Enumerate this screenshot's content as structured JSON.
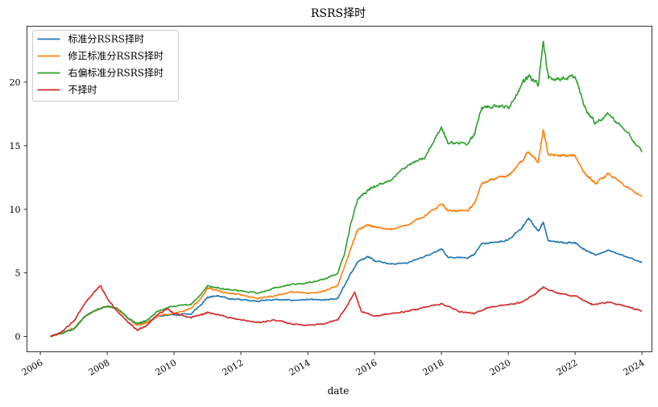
{
  "chart_data": {
    "type": "line",
    "title": "RSRS择时",
    "xlabel": "date",
    "ylabel": "",
    "xlim": [
      2005.6,
      2024.3
    ],
    "ylim": [
      -1.2,
      24.4
    ],
    "x_ticks": [
      2006,
      2008,
      2010,
      2012,
      2014,
      2016,
      2018,
      2020,
      2022,
      2024
    ],
    "x_tick_labels": [
      "2006",
      "2008",
      "2010",
      "2012",
      "2014",
      "2016",
      "2018",
      "2020",
      "2022",
      "2024"
    ],
    "y_ticks": [
      0,
      5,
      10,
      15,
      20
    ],
    "y_tick_labels": [
      "0",
      "5",
      "10",
      "15",
      "20"
    ],
    "grid": false,
    "legend_position": "top-left",
    "series": [
      {
        "name": "标准分RSRS择时",
        "color": "#1f77b4",
        "points": [
          [
            2006.3,
            0
          ],
          [
            2006.6,
            0.25
          ],
          [
            2007.0,
            0.6
          ],
          [
            2007.3,
            1.5
          ],
          [
            2007.6,
            2.0
          ],
          [
            2008.0,
            2.4
          ],
          [
            2008.3,
            2.2
          ],
          [
            2008.6,
            1.5
          ],
          [
            2008.9,
            0.9
          ],
          [
            2009.2,
            1.1
          ],
          [
            2009.5,
            1.6
          ],
          [
            2010.0,
            1.7
          ],
          [
            2010.5,
            1.75
          ],
          [
            2010.8,
            2.5
          ],
          [
            2011.0,
            3.1
          ],
          [
            2011.3,
            3.2
          ],
          [
            2011.6,
            3.0
          ],
          [
            2012.0,
            2.9
          ],
          [
            2012.5,
            2.8
          ],
          [
            2013.0,
            2.9
          ],
          [
            2013.5,
            2.85
          ],
          [
            2014.0,
            2.9
          ],
          [
            2014.5,
            2.85
          ],
          [
            2014.9,
            3.0
          ],
          [
            2015.1,
            4.0
          ],
          [
            2015.3,
            5.0
          ],
          [
            2015.5,
            5.9
          ],
          [
            2015.8,
            6.3
          ],
          [
            2016.0,
            6.0
          ],
          [
            2016.5,
            5.7
          ],
          [
            2017.0,
            5.8
          ],
          [
            2017.5,
            6.3
          ],
          [
            2018.0,
            6.9
          ],
          [
            2018.2,
            6.2
          ],
          [
            2018.8,
            6.2
          ],
          [
            2019.0,
            6.5
          ],
          [
            2019.2,
            7.3
          ],
          [
            2019.6,
            7.4
          ],
          [
            2020.0,
            7.6
          ],
          [
            2020.4,
            8.5
          ],
          [
            2020.6,
            9.3
          ],
          [
            2020.9,
            8.3
          ],
          [
            2021.05,
            9.0
          ],
          [
            2021.2,
            7.5
          ],
          [
            2021.6,
            7.4
          ],
          [
            2022.0,
            7.4
          ],
          [
            2022.3,
            6.8
          ],
          [
            2022.6,
            6.4
          ],
          [
            2023.0,
            6.8
          ],
          [
            2023.5,
            6.3
          ],
          [
            2024.0,
            5.8
          ]
        ]
      },
      {
        "name": "修正标准分RSRS择时",
        "color": "#ff7f0e",
        "points": [
          [
            2006.3,
            0
          ],
          [
            2006.6,
            0.25
          ],
          [
            2007.0,
            0.6
          ],
          [
            2007.3,
            1.5
          ],
          [
            2007.6,
            2.0
          ],
          [
            2008.0,
            2.4
          ],
          [
            2008.3,
            2.2
          ],
          [
            2008.6,
            1.5
          ],
          [
            2008.9,
            0.9
          ],
          [
            2009.2,
            1.1
          ],
          [
            2009.5,
            1.6
          ],
          [
            2010.0,
            1.8
          ],
          [
            2010.5,
            2.2
          ],
          [
            2010.8,
            3.0
          ],
          [
            2011.0,
            3.8
          ],
          [
            2011.3,
            3.6
          ],
          [
            2011.6,
            3.4
          ],
          [
            2012.0,
            3.3
          ],
          [
            2012.5,
            3.0
          ],
          [
            2013.0,
            3.2
          ],
          [
            2013.5,
            3.5
          ],
          [
            2014.0,
            3.4
          ],
          [
            2014.5,
            3.6
          ],
          [
            2014.9,
            4.0
          ],
          [
            2015.1,
            5.5
          ],
          [
            2015.3,
            7.0
          ],
          [
            2015.5,
            8.4
          ],
          [
            2015.8,
            8.8
          ],
          [
            2016.0,
            8.6
          ],
          [
            2016.5,
            8.4
          ],
          [
            2017.0,
            8.8
          ],
          [
            2017.5,
            9.5
          ],
          [
            2018.0,
            10.4
          ],
          [
            2018.2,
            9.9
          ],
          [
            2018.8,
            9.9
          ],
          [
            2019.0,
            10.5
          ],
          [
            2019.2,
            12.0
          ],
          [
            2019.6,
            12.4
          ],
          [
            2020.0,
            12.6
          ],
          [
            2020.4,
            13.8
          ],
          [
            2020.6,
            14.5
          ],
          [
            2020.9,
            13.7
          ],
          [
            2021.05,
            16.2
          ],
          [
            2021.2,
            14.3
          ],
          [
            2021.6,
            14.2
          ],
          [
            2022.0,
            14.2
          ],
          [
            2022.3,
            12.8
          ],
          [
            2022.6,
            12.0
          ],
          [
            2023.0,
            12.8
          ],
          [
            2023.5,
            11.8
          ],
          [
            2024.0,
            11.0
          ]
        ]
      },
      {
        "name": "右偏标准分RSRS择时",
        "color": "#2ca02c",
        "points": [
          [
            2006.3,
            0
          ],
          [
            2006.6,
            0.25
          ],
          [
            2007.0,
            0.6
          ],
          [
            2007.3,
            1.5
          ],
          [
            2007.6,
            2.0
          ],
          [
            2008.0,
            2.4
          ],
          [
            2008.3,
            2.2
          ],
          [
            2008.6,
            1.5
          ],
          [
            2008.9,
            1.0
          ],
          [
            2009.2,
            1.3
          ],
          [
            2009.5,
            2.0
          ],
          [
            2010.0,
            2.4
          ],
          [
            2010.5,
            2.5
          ],
          [
            2010.8,
            3.3
          ],
          [
            2011.0,
            4.0
          ],
          [
            2011.3,
            3.8
          ],
          [
            2011.6,
            3.7
          ],
          [
            2012.0,
            3.6
          ],
          [
            2012.5,
            3.4
          ],
          [
            2013.0,
            3.8
          ],
          [
            2013.5,
            4.1
          ],
          [
            2014.0,
            4.2
          ],
          [
            2014.5,
            4.5
          ],
          [
            2014.9,
            5.0
          ],
          [
            2015.1,
            6.5
          ],
          [
            2015.3,
            9.0
          ],
          [
            2015.5,
            10.8
          ],
          [
            2015.8,
            11.5
          ],
          [
            2016.0,
            11.8
          ],
          [
            2016.5,
            12.3
          ],
          [
            2017.0,
            13.5
          ],
          [
            2017.5,
            14.0
          ],
          [
            2018.0,
            16.5
          ],
          [
            2018.2,
            15.2
          ],
          [
            2018.8,
            15.2
          ],
          [
            2019.0,
            16.0
          ],
          [
            2019.2,
            18.0
          ],
          [
            2019.6,
            18.2
          ],
          [
            2020.0,
            18.0
          ],
          [
            2020.4,
            19.8
          ],
          [
            2020.6,
            20.5
          ],
          [
            2020.9,
            19.8
          ],
          [
            2021.05,
            23.2
          ],
          [
            2021.2,
            20.3
          ],
          [
            2021.6,
            20.3
          ],
          [
            2022.0,
            20.4
          ],
          [
            2022.3,
            18.0
          ],
          [
            2022.6,
            16.8
          ],
          [
            2023.0,
            17.5
          ],
          [
            2023.5,
            16.2
          ],
          [
            2024.0,
            14.5
          ]
        ]
      },
      {
        "name": "不择时",
        "color": "#d62728",
        "points": [
          [
            2006.3,
            0
          ],
          [
            2006.6,
            0.3
          ],
          [
            2007.0,
            1.2
          ],
          [
            2007.3,
            2.5
          ],
          [
            2007.6,
            3.5
          ],
          [
            2007.8,
            4.0
          ],
          [
            2008.0,
            3.0
          ],
          [
            2008.3,
            2.0
          ],
          [
            2008.6,
            1.2
          ],
          [
            2008.9,
            0.5
          ],
          [
            2009.2,
            0.9
          ],
          [
            2009.5,
            1.7
          ],
          [
            2009.8,
            2.2
          ],
          [
            2010.0,
            1.8
          ],
          [
            2010.5,
            1.5
          ],
          [
            2010.8,
            1.7
          ],
          [
            2011.0,
            1.9
          ],
          [
            2011.5,
            1.6
          ],
          [
            2012.0,
            1.3
          ],
          [
            2012.5,
            1.1
          ],
          [
            2013.0,
            1.3
          ],
          [
            2013.5,
            1.0
          ],
          [
            2014.0,
            0.9
          ],
          [
            2014.5,
            1.0
          ],
          [
            2014.9,
            1.3
          ],
          [
            2015.2,
            2.5
          ],
          [
            2015.4,
            3.5
          ],
          [
            2015.6,
            2.0
          ],
          [
            2016.0,
            1.6
          ],
          [
            2016.5,
            1.8
          ],
          [
            2017.0,
            2.0
          ],
          [
            2017.5,
            2.3
          ],
          [
            2018.0,
            2.6
          ],
          [
            2018.5,
            2.0
          ],
          [
            2019.0,
            1.8
          ],
          [
            2019.4,
            2.3
          ],
          [
            2020.0,
            2.5
          ],
          [
            2020.4,
            2.7
          ],
          [
            2020.8,
            3.3
          ],
          [
            2021.05,
            3.9
          ],
          [
            2021.5,
            3.4
          ],
          [
            2022.0,
            3.2
          ],
          [
            2022.5,
            2.5
          ],
          [
            2023.0,
            2.7
          ],
          [
            2023.5,
            2.4
          ],
          [
            2024.0,
            2.0
          ]
        ]
      }
    ]
  }
}
